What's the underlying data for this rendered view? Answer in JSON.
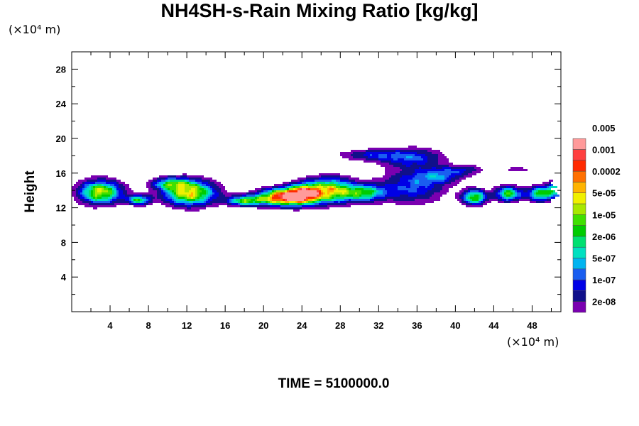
{
  "chart_data": {
    "type": "contour",
    "title": "NH4SH-s-Rain Mixing Ratio [kg/kg]",
    "xlabel": "",
    "ylabel": "Height",
    "x_unit_note": "(×10⁴ m)",
    "y_unit_note": "(×10⁴ m)",
    "xlim": [
      0,
      51
    ],
    "ylim": [
      0,
      30
    ],
    "x_ticks": [
      4,
      8,
      12,
      16,
      20,
      24,
      28,
      32,
      36,
      40,
      44,
      48
    ],
    "y_ticks": [
      4,
      8,
      12,
      16,
      20,
      24,
      28
    ],
    "colorbar": {
      "levels": [
        "2e-08",
        "1e-07",
        "5e-07",
        "2e-06",
        "1e-05",
        "5e-05",
        "0.0002",
        "0.001",
        "0.005"
      ],
      "colors": [
        "#7a00b0",
        "#10108a",
        "#0000e6",
        "#1a5ef0",
        "#00b4f0",
        "#00e0c0",
        "#00e070",
        "#00cc00",
        "#40e000",
        "#a8e800",
        "#f0f000",
        "#ffb400",
        "#ff7000",
        "#ff2a00",
        "#ff4040",
        "#ff9a9a"
      ]
    },
    "footer": "TIME = 5100000.0"
  }
}
